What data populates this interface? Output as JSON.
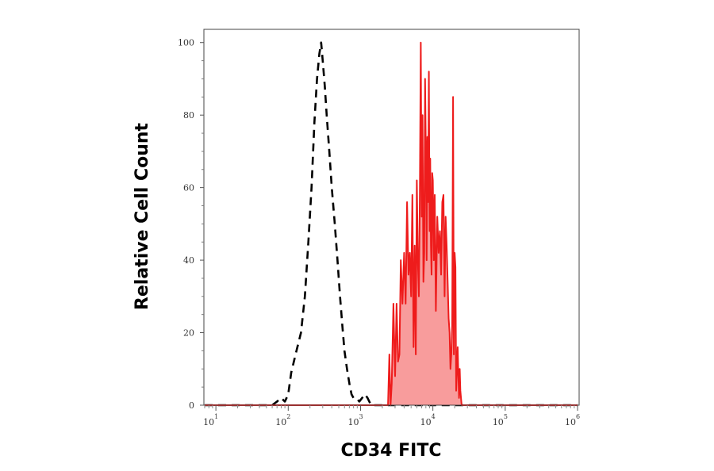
{
  "chart_data": {
    "type": "area",
    "title": "",
    "xlabel": "CD34 FITC",
    "ylabel": "Relative Cell Count",
    "xscale": "log10",
    "xlim": [
      7,
      1000000
    ],
    "ylim": [
      0,
      103
    ],
    "grid": false,
    "x_ticks": [
      {
        "base": "10",
        "exp": "1",
        "value": 10
      },
      {
        "base": "10",
        "exp": "2",
        "value": 100
      },
      {
        "base": "10",
        "exp": "3",
        "value": 1000
      },
      {
        "base": "10",
        "exp": "4",
        "value": 10000
      },
      {
        "base": "10",
        "exp": "5",
        "value": 100000
      },
      {
        "base": "10",
        "exp": "6",
        "value": 1000000
      }
    ],
    "y_ticks": [
      "0",
      "20",
      "40",
      "60",
      "80",
      "100"
    ],
    "series": [
      {
        "style": "dashed",
        "color": "#000000",
        "fill": "none",
        "x": [
          7,
          60,
          70,
          80,
          90,
          100,
          110,
          130,
          150,
          170,
          190,
          210,
          230,
          250,
          270,
          285,
          300,
          320,
          340,
          370,
          400,
          440,
          480,
          520,
          560,
          600,
          650,
          700,
          750,
          800,
          880,
          960,
          1050,
          1150,
          1250,
          1400,
          1600,
          2000,
          1000000
        ],
        "y": [
          0,
          0,
          1,
          2,
          1,
          3,
          9,
          15,
          20,
          30,
          45,
          60,
          78,
          90,
          97,
          100,
          95,
          88,
          80,
          70,
          60,
          50,
          40,
          30,
          22,
          15,
          10,
          6,
          3,
          2,
          2,
          1,
          2,
          3,
          2,
          0,
          0,
          0,
          0
        ]
      },
      {
        "style": "solid",
        "color": "#ee1c1c",
        "fill": "#f89c9c",
        "x": [
          7,
          2400,
          2500,
          2600,
          2700,
          2850,
          3000,
          3150,
          3300,
          3450,
          3600,
          3800,
          4000,
          4200,
          4400,
          4600,
          4800,
          5000,
          5200,
          5400,
          5600,
          5800,
          6000,
          6200,
          6400,
          6600,
          6800,
          7000,
          7200,
          7400,
          7600,
          7800,
          8000,
          8200,
          8400,
          8600,
          8800,
          9000,
          9200,
          9400,
          9600,
          9800,
          10000,
          10300,
          10600,
          11000,
          11500,
          12000,
          12500,
          13000,
          13500,
          14000,
          14500,
          15000,
          15500,
          16000,
          16500,
          17000,
          17500,
          18000,
          18500,
          19000,
          19500,
          20000,
          20500,
          21000,
          21500,
          22000,
          22500,
          23000,
          23500,
          24000,
          25000,
          26000,
          27000,
          1000000
        ],
        "y": [
          0,
          0,
          14,
          0,
          6,
          28,
          8,
          28,
          12,
          14,
          40,
          28,
          42,
          28,
          56,
          36,
          42,
          30,
          58,
          16,
          44,
          14,
          62,
          40,
          30,
          58,
          100,
          52,
          80,
          34,
          42,
          90,
          70,
          40,
          74,
          56,
          92,
          48,
          68,
          44,
          36,
          64,
          62,
          40,
          58,
          26,
          52,
          42,
          48,
          36,
          56,
          58,
          30,
          52,
          44,
          34,
          24,
          20,
          10,
          14,
          22,
          85,
          14,
          42,
          38,
          4,
          10,
          16,
          8,
          2,
          10,
          4,
          0,
          0,
          0,
          0
        ]
      }
    ]
  }
}
